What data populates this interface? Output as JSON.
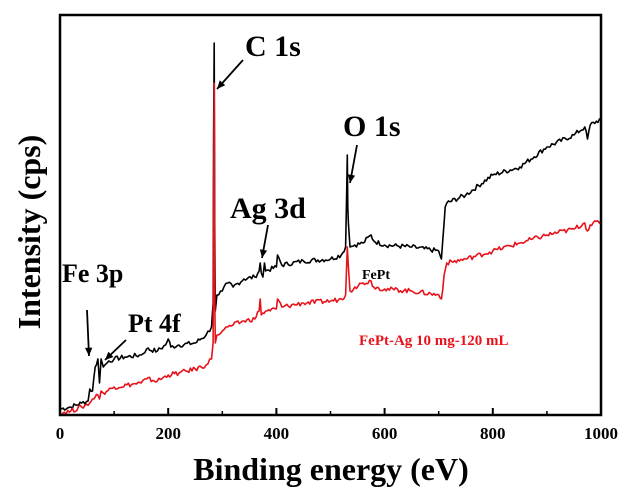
{
  "chart_data": {
    "type": "line",
    "title": "",
    "xlabel": "Binding energy (eV)",
    "ylabel": "Intensity (cps)",
    "xlim": [
      0,
      1000
    ],
    "ylim": [
      0,
      100
    ],
    "x_ticks": [
      "0",
      "200",
      "400",
      "600",
      "800",
      "1000"
    ],
    "y_ticks_shown": false,
    "grid": false,
    "series": [
      {
        "name": "FePt",
        "color": "#000000",
        "x": [
          0,
          20,
          40,
          52,
          55,
          60,
          65,
          70,
          73,
          76,
          80,
          90,
          100,
          120,
          150,
          160,
          180,
          195,
          200,
          205,
          220,
          250,
          270,
          280,
          283,
          284,
          285,
          286,
          287,
          290,
          300,
          310,
          320,
          340,
          360,
          368,
          370,
          372,
          375,
          378,
          380,
          400,
          402,
          410,
          450,
          500,
          520,
          528,
          530,
          531,
          532,
          533,
          536,
          545,
          560,
          575,
          580,
          600,
          650,
          700,
          705,
          710,
          712,
          715,
          750,
          800,
          850,
          900,
          950,
          970,
          975,
          980,
          1000
        ],
        "y": [
          1.5,
          2.0,
          3.0,
          3.5,
          6.5,
          6.0,
          12.0,
          14.0,
          8.0,
          14.0,
          12.0,
          13.5,
          14.0,
          14.5,
          15.0,
          16.5,
          16.0,
          17.5,
          19.0,
          17.0,
          17.5,
          18.0,
          20.0,
          22.0,
          28.0,
          70.0,
          93.0,
          48.0,
          26.0,
          30.0,
          31.0,
          33.0,
          32.0,
          34.0,
          34.5,
          36.0,
          38.0,
          35.5,
          34.5,
          38.0,
          36.0,
          37.0,
          40.0,
          37.5,
          38.5,
          39.0,
          40.0,
          42.0,
          56.0,
          65.0,
          52.0,
          48.0,
          42.0,
          42.5,
          43.0,
          45.0,
          43.5,
          42.5,
          42.0,
          41.0,
          39.0,
          48.0,
          52.0,
          53.0,
          55.0,
          60.0,
          62.0,
          67.0,
          70.0,
          72.0,
          69.0,
          72.5,
          74.0
        ]
      },
      {
        "name": "FePt-Ag 10 mg-120 mL",
        "color": "#e8121b",
        "x": [
          0,
          20,
          40,
          55,
          60,
          65,
          70,
          73,
          76,
          80,
          100,
          150,
          160,
          180,
          200,
          220,
          250,
          270,
          280,
          283,
          284,
          285,
          286,
          287,
          290,
          300,
          310,
          320,
          340,
          360,
          368,
          370,
          372,
          375,
          380,
          400,
          402,
          410,
          450,
          500,
          520,
          528,
          531,
          533,
          536,
          545,
          560,
          575,
          580,
          600,
          650,
          700,
          705,
          710,
          715,
          750,
          800,
          850,
          900,
          950,
          970,
          975,
          980,
          1000
        ],
        "y": [
          0.5,
          1.0,
          2.0,
          3.0,
          4.0,
          4.5,
          5.0,
          4.0,
          6.0,
          5.5,
          7.0,
          8.0,
          9.0,
          8.5,
          10.0,
          10.5,
          11.5,
          12.5,
          14.0,
          18.0,
          48.0,
          83.0,
          30.0,
          18.0,
          20.0,
          21.0,
          22.0,
          22.5,
          23.5,
          24.0,
          26.0,
          29.0,
          25.0,
          25.5,
          26.0,
          26.5,
          29.0,
          27.0,
          28.0,
          28.5,
          29.0,
          30.0,
          42.0,
          37.0,
          31.0,
          32.0,
          33.0,
          33.5,
          32.0,
          31.5,
          31.0,
          30.0,
          29.0,
          35.0,
          38.0,
          39.0,
          41.0,
          43.0,
          45.0,
          46.5,
          48.0,
          46.0,
          47.5,
          48.5
        ]
      }
    ],
    "annotations": [
      {
        "label": "Fe 3p",
        "target": [
          55,
          10
        ]
      },
      {
        "label": "Pt 4f",
        "target": [
          74,
          14
        ]
      },
      {
        "label": "C 1s",
        "target": [
          285,
          82
        ]
      },
      {
        "label": "Ag 3d",
        "target": [
          370,
          36
        ]
      },
      {
        "label": "O 1s",
        "target": [
          531,
          55
        ]
      }
    ]
  }
}
